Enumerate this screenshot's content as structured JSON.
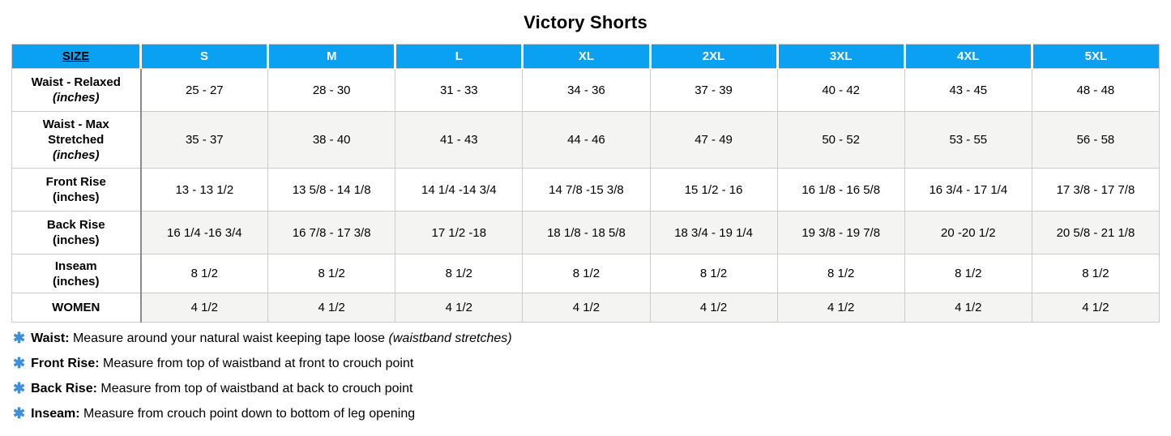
{
  "title": "Victory Shorts",
  "colors": {
    "header_blue": "#0aa1f2",
    "asterisk_blue": "#3e8fd6",
    "shaded_row": "#f4f4f2",
    "border_light": "#cbcbcb",
    "border_dark": "#8a8a8a"
  },
  "chart_data": {
    "type": "table",
    "title": "Victory Shorts",
    "columns": [
      "SIZE",
      "S",
      "M",
      "L",
      "XL",
      "2XL",
      "3XL",
      "4XL",
      "5XL"
    ],
    "rows": [
      [
        "Waist - Relaxed (inches)",
        "25 - 27",
        "28 - 30",
        "31 - 33",
        "34 - 36",
        "37 - 39",
        "40 - 42",
        "43 - 45",
        "48 - 48"
      ],
      [
        "Waist - Max Stretched (inches)",
        "35 - 37",
        "38 - 40",
        "41 - 43",
        "44 - 46",
        "47 - 49",
        "50 - 52",
        "53 - 55",
        "56 - 58"
      ],
      [
        "Front Rise (inches)",
        "13 - 13 1/2",
        "13 5/8 - 14 1/8",
        "14 1/4 -14 3/4",
        "14 7/8 -15 3/8",
        "15 1/2 - 16",
        "16 1/8 - 16 5/8",
        "16 3/4 - 17 1/4",
        "17 3/8 - 17 7/8"
      ],
      [
        "Back Rise (inches)",
        "16 1/4 -16 3/4",
        "16 7/8 - 17 3/8",
        "17 1/2 -18",
        "18 1/8 - 18 5/8",
        "18 3/4 - 19 1/4",
        "19 3/8 - 19 7/8",
        "20 -20 1/2",
        "20 5/8 - 21 1/8"
      ],
      [
        "Inseam (inches)",
        "8 1/2",
        "8 1/2",
        "8 1/2",
        "8 1/2",
        "8 1/2",
        "8 1/2",
        "8 1/2",
        "8 1/2"
      ],
      [
        "WOMEN",
        "4 1/2",
        "4 1/2",
        "4 1/2",
        "4 1/2",
        "4 1/2",
        "4 1/2",
        "4 1/2",
        "4 1/2"
      ]
    ]
  },
  "table": {
    "header": [
      "SIZE",
      "S",
      "M",
      "L",
      "XL",
      "2XL",
      "3XL",
      "4XL",
      "5XL"
    ],
    "rows": [
      {
        "label": "Waist - Relaxed",
        "unit": "(inches)",
        "unit_style": "italic",
        "shaded": false,
        "values": [
          "25 - 27",
          "28 - 30",
          "31 - 33",
          "34 - 36",
          "37 - 39",
          "40 - 42",
          "43 - 45",
          "48 - 48"
        ]
      },
      {
        "label": "Waist - Max Stretched",
        "unit": "(inches)",
        "unit_style": "italic",
        "shaded": true,
        "values": [
          "35 - 37",
          "38 - 40",
          "41 - 43",
          "44 - 46",
          "47 - 49",
          "50 - 52",
          "53 - 55",
          "56 - 58"
        ]
      },
      {
        "label": "Front Rise",
        "unit": "(inches)",
        "unit_style": "normal",
        "shaded": false,
        "values": [
          "13 - 13 1/2",
          "13 5/8 - 14 1/8",
          "14 1/4 -14 3/4",
          "14 7/8 -15 3/8",
          "15 1/2 - 16",
          "16 1/8 - 16 5/8",
          "16 3/4 - 17 1/4",
          "17 3/8 - 17 7/8"
        ]
      },
      {
        "label": "Back Rise",
        "unit": "(inches)",
        "unit_style": "normal",
        "shaded": true,
        "values": [
          "16 1/4 -16 3/4",
          "16 7/8 - 17 3/8",
          "17 1/2 -18",
          "18 1/8 - 18 5/8",
          "18 3/4 - 19 1/4",
          "19 3/8 - 19 7/8",
          "20 -20 1/2",
          "20 5/8 - 21 1/8"
        ]
      },
      {
        "label": "Inseam",
        "unit": "(inches)",
        "unit_style": "normal",
        "shaded": false,
        "values": [
          "8 1/2",
          "8 1/2",
          "8 1/2",
          "8 1/2",
          "8 1/2",
          "8 1/2",
          "8 1/2",
          "8 1/2"
        ]
      },
      {
        "label": "WOMEN",
        "unit": "",
        "unit_style": "none",
        "shaded": true,
        "values": [
          "4 1/2",
          "4 1/2",
          "4 1/2",
          "4 1/2",
          "4 1/2",
          "4 1/2",
          "4 1/2",
          "4 1/2"
        ]
      }
    ]
  },
  "footnotes": {
    "star": "✱",
    "items": [
      {
        "label": "Waist:",
        "text": "Measure around your natural waist keeping tape loose",
        "italic": "(waistband stretches)"
      },
      {
        "label": "Front Rise:",
        "text": "Measure from top of waistband at front to crouch point",
        "italic": ""
      },
      {
        "label": "Back Rise:",
        "text": "Measure from top of waistband at back to crouch point",
        "italic": ""
      },
      {
        "label": "Inseam:",
        "text": "Measure from crouch point down to bottom of leg opening",
        "italic": ""
      }
    ]
  }
}
